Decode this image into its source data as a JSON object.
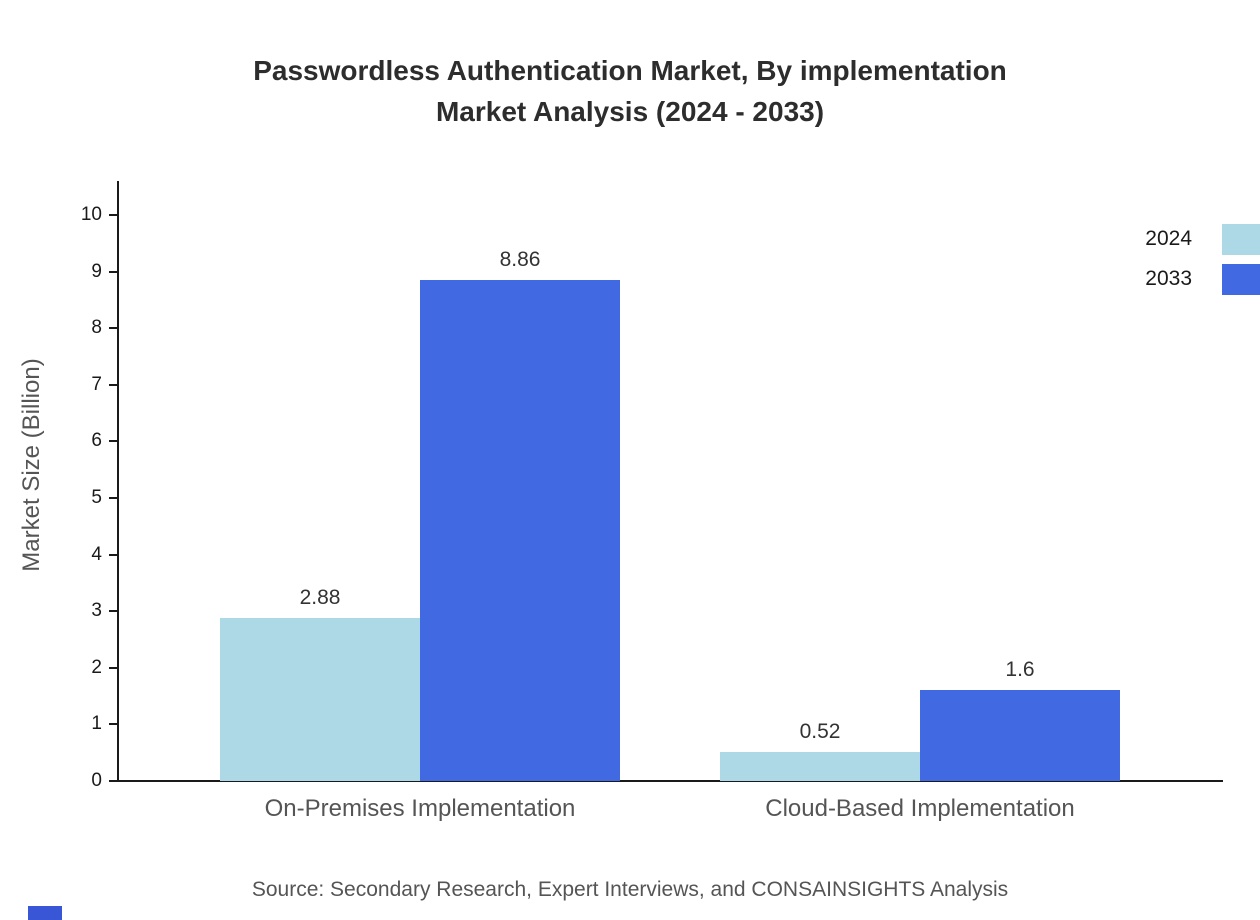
{
  "chart_data": {
    "type": "bar",
    "title_lines": [
      "Passwordless Authentication Market, By implementation",
      "Market Analysis (2024 - 2033)"
    ],
    "categories": [
      "On-Premises Implementation",
      "Cloud-Based Implementation"
    ],
    "series": [
      {
        "name": "2024",
        "color": "#ADD8E6",
        "values": [
          2.88,
          0.52
        ]
      },
      {
        "name": "2033",
        "color": "#4169E1",
        "values": [
          8.86,
          1.6
        ]
      }
    ],
    "xlabel": "",
    "ylabel": "Market Size (Billion)",
    "ylim": [
      0,
      10
    ],
    "yticks": [
      0,
      1,
      2,
      3,
      4,
      5,
      6,
      7,
      8,
      9,
      10
    ],
    "grid": false,
    "legend_position": "top-right",
    "value_labels": [
      "2.88",
      "8.86",
      "0.52",
      "1.6"
    ]
  },
  "footer": {
    "source": "Source: Secondary Research, Expert Interviews, and CONSAINSIGHTS Analysis"
  },
  "colors": {
    "series_2024": "#ADD8E6",
    "series_2033": "#4169E1",
    "corner_mark": "#3956D6",
    "title_text": "#2d2d2d",
    "axis_text": "#1a1a1a",
    "muted_text": "#555555"
  }
}
